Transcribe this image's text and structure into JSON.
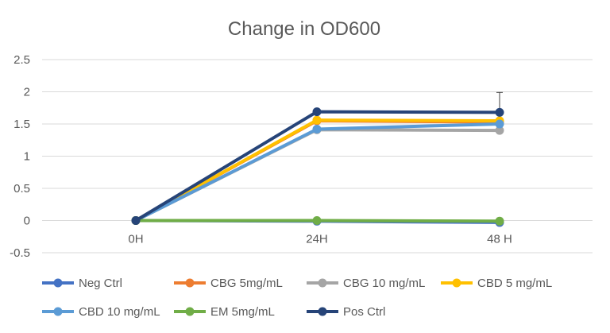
{
  "chart_data": {
    "type": "line",
    "title": "Change in OD600",
    "xlabel": "",
    "ylabel": "",
    "categories": [
      "0H",
      "24H",
      "48 H"
    ],
    "ylim": [
      -0.5,
      2.5
    ],
    "yticks": [
      "2.5",
      "2",
      "1.5",
      "1",
      "0.5",
      "0",
      "-0.5"
    ],
    "ytick_values": [
      2.5,
      2,
      1.5,
      1,
      0.5,
      0,
      -0.5
    ],
    "grid": true,
    "legend_position": "bottom",
    "series": [
      {
        "name": "Neg Ctrl",
        "color": "#4472C4",
        "values": [
          0,
          -0.01,
          -0.03
        ]
      },
      {
        "name": "CBG 5mg/mL",
        "color": "#ED7D31",
        "values": [
          0,
          1.55,
          1.53
        ]
      },
      {
        "name": "CBG 10 mg/mL",
        "color": "#A5A5A5",
        "values": [
          0,
          1.41,
          1.4
        ]
      },
      {
        "name": "CBD 5 mg/mL",
        "color": "#FFC000",
        "values": [
          0,
          1.56,
          1.55
        ]
      },
      {
        "name": "CBD 10 mg/mL",
        "color": "#5B9BD5",
        "values": [
          0,
          1.42,
          1.5
        ]
      },
      {
        "name": "EM 5mg/mL",
        "color": "#70AD47",
        "values": [
          0,
          0.0,
          -0.01
        ]
      },
      {
        "name": "Pos Ctrl",
        "color": "#264478",
        "values": [
          0,
          1.69,
          1.68
        ],
        "error": [
          0,
          0.03,
          0.31
        ]
      }
    ]
  }
}
